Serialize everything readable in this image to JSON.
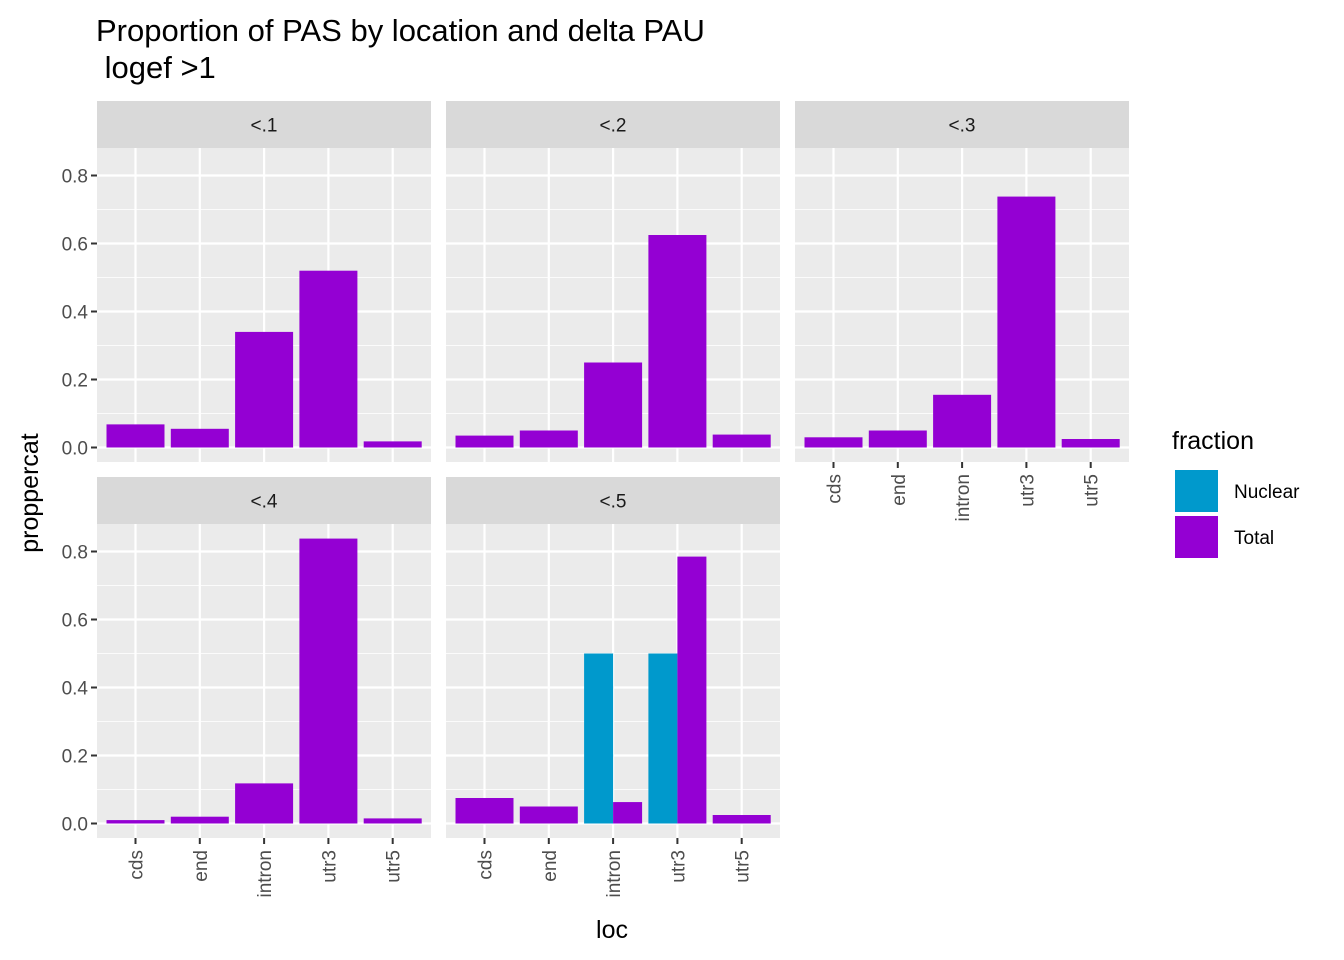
{
  "chart_data": {
    "type": "bar",
    "title": "Proportion of PAS by location and delta PAU",
    "subtitle": " logef >1",
    "xlabel": "loc",
    "ylabel": "proppercat",
    "ylim": [
      0,
      0.85
    ],
    "y_ticks": [
      "0.0",
      "0.2",
      "0.4",
      "0.6",
      "0.8"
    ],
    "categories": [
      "cds",
      "end",
      "intron",
      "utr3",
      "utr5"
    ],
    "position": "dodge",
    "grid": true,
    "legend": {
      "title": "fraction",
      "placement": "right",
      "entries": [
        {
          "name": "Nuclear",
          "color": "#0099CC"
        },
        {
          "name": "Total",
          "color": "#9400D3"
        }
      ]
    },
    "facets": [
      {
        "label": "<.1",
        "series": [
          {
            "name": "Total",
            "values": [
              0.068,
              0.055,
              0.34,
              0.52,
              0.018
            ]
          }
        ]
      },
      {
        "label": "<.2",
        "series": [
          {
            "name": "Total",
            "values": [
              0.035,
              0.05,
              0.25,
              0.625,
              0.038
            ]
          }
        ]
      },
      {
        "label": "<.3",
        "series": [
          {
            "name": "Total",
            "values": [
              0.03,
              0.05,
              0.155,
              0.738,
              0.025
            ]
          }
        ]
      },
      {
        "label": "<.4",
        "series": [
          {
            "name": "Total",
            "values": [
              0.01,
              0.02,
              0.118,
              0.838,
              0.015
            ]
          }
        ]
      },
      {
        "label": "<.5",
        "series": [
          {
            "name": "Nuclear",
            "values": [
              null,
              null,
              0.5,
              0.5,
              null
            ]
          },
          {
            "name": "Total",
            "values": [
              0.075,
              0.05,
              0.063,
              0.785,
              0.025
            ]
          }
        ]
      }
    ]
  }
}
